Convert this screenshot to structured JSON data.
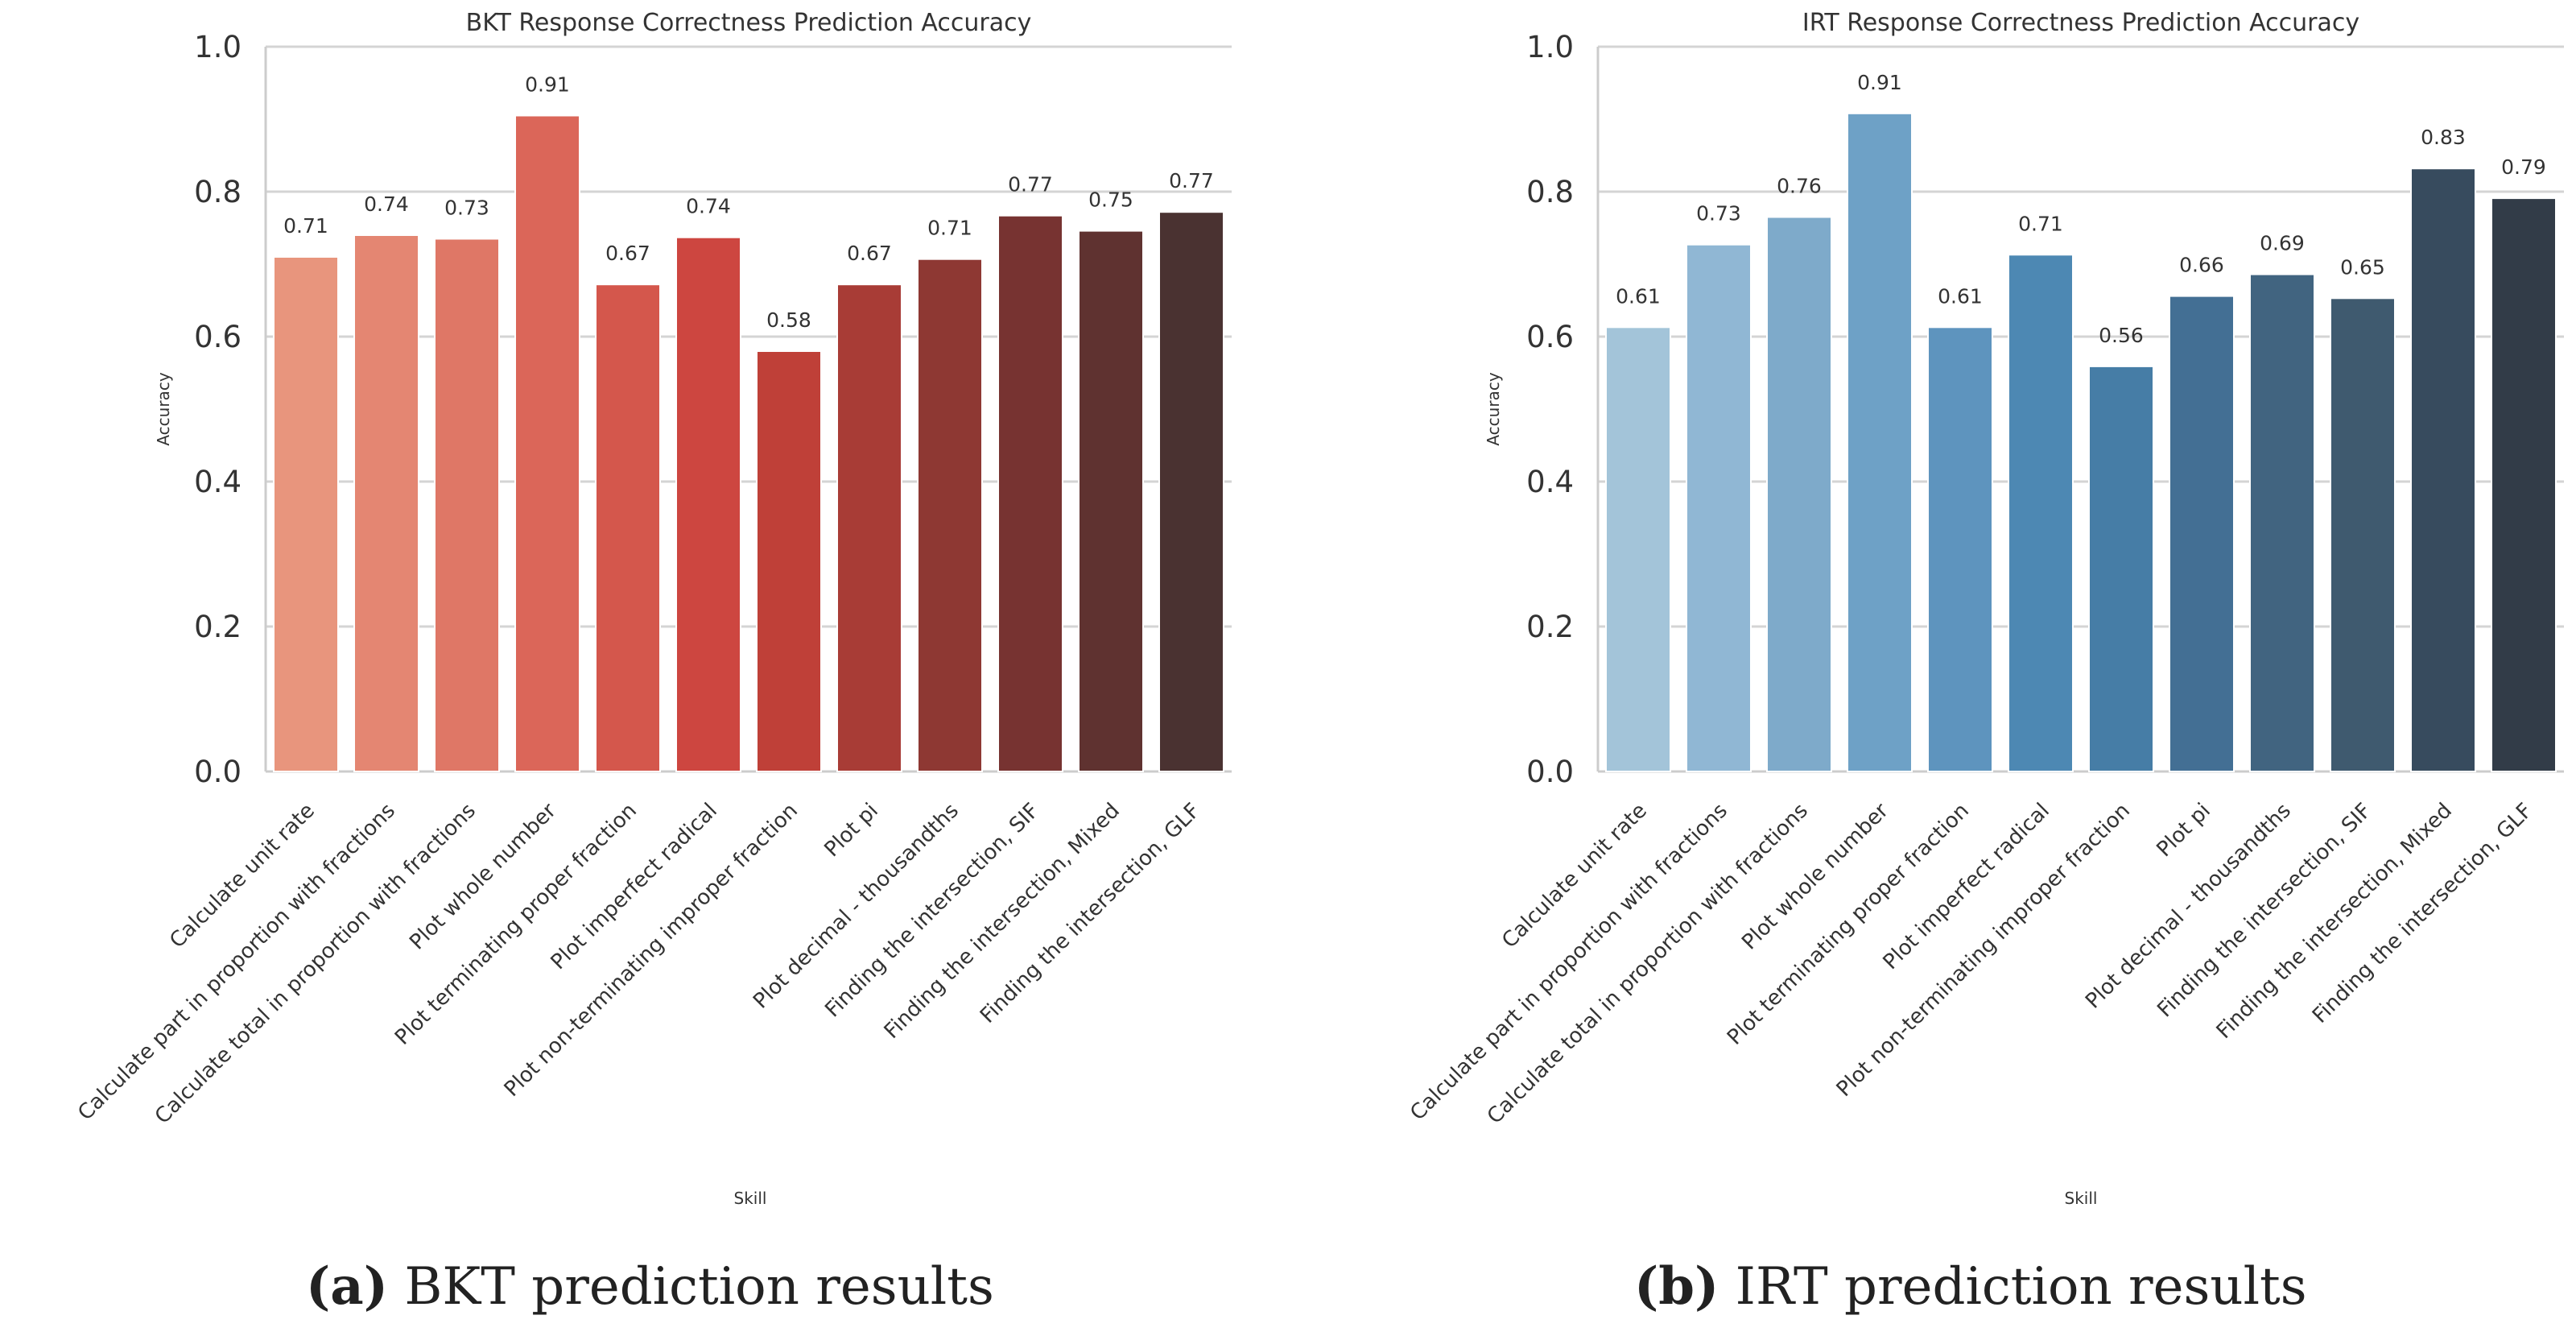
{
  "chart_data": [
    {
      "type": "bar",
      "title": "BKT Response Correctness Prediction Accuracy",
      "xlabel": "Skill",
      "ylabel": "Accuracy",
      "ylim": [
        0,
        1.0
      ],
      "yticks": [
        "0.0",
        "0.2",
        "0.4",
        "0.6",
        "0.8",
        "1.0"
      ],
      "grid": true,
      "categories": [
        "Calculate unit rate",
        "Calculate part in proportion with fractions",
        "Calculate total in proportion with fractions",
        "Plot whole number",
        "Plot terminating proper fraction",
        "Plot imperfect radical",
        "Plot non-terminating improper fraction",
        "Plot pi",
        "Plot decimal - thousandths",
        "Finding the intersection, SIF",
        "Finding the intersection, Mixed",
        "Finding the intersection, GLF"
      ],
      "values": [
        0.71,
        0.74,
        0.735,
        0.905,
        0.672,
        0.737,
        0.58,
        0.672,
        0.707,
        0.767,
        0.746,
        0.772
      ],
      "labels": [
        "0.71",
        "0.74",
        "0.73",
        "0.91",
        "0.67",
        "0.74",
        "0.58",
        "0.67",
        "0.71",
        "0.77",
        "0.75",
        "0.77"
      ],
      "colors": [
        "#e8957d",
        "#e48672",
        "#df7766",
        "#db6659",
        "#d4574c",
        "#cd4640",
        "#bf4038",
        "#a83c36",
        "#8e3833",
        "#773331",
        "#5f3230",
        "#4a3231"
      ]
    },
    {
      "type": "bar",
      "title": "IRT Response Correctness Prediction Accuracy",
      "xlabel": "Skill",
      "ylabel": "Accuracy",
      "ylim": [
        0,
        1.0
      ],
      "yticks": [
        "0.0",
        "0.2",
        "0.4",
        "0.6",
        "0.8",
        "1.0"
      ],
      "grid": true,
      "categories": [
        "Calculate unit rate",
        "Calculate part in proportion with fractions",
        "Calculate total in proportion with fractions",
        "Plot whole number",
        "Plot terminating proper fraction",
        "Plot imperfect radical",
        "Plot non-terminating improper fraction",
        "Plot pi",
        "Plot decimal - thousandths",
        "Finding the intersection, SIF",
        "Finding the intersection, Mixed",
        "Finding the intersection, GLF"
      ],
      "values": [
        0.613,
        0.727,
        0.765,
        0.908,
        0.613,
        0.713,
        0.559,
        0.656,
        0.686,
        0.653,
        0.832,
        0.791
      ],
      "labels": [
        "0.61",
        "0.73",
        "0.76",
        "0.91",
        "0.61",
        "0.71",
        "0.56",
        "0.66",
        "0.69",
        "0.65",
        "0.83",
        "0.79"
      ],
      "colors": [
        "#a3c4d9",
        "#90b7d4",
        "#7eaaca",
        "#6ea1c6",
        "#5e94be",
        "#4d88b3",
        "#467da6",
        "#436f94",
        "#416480",
        "#3f5a6f",
        "#374b5e",
        "#323c48"
      ]
    }
  ],
  "captions": [
    {
      "letter": "(a)",
      "text": " BKT prediction results"
    },
    {
      "letter": "(b)",
      "text": " IRT prediction results"
    }
  ]
}
